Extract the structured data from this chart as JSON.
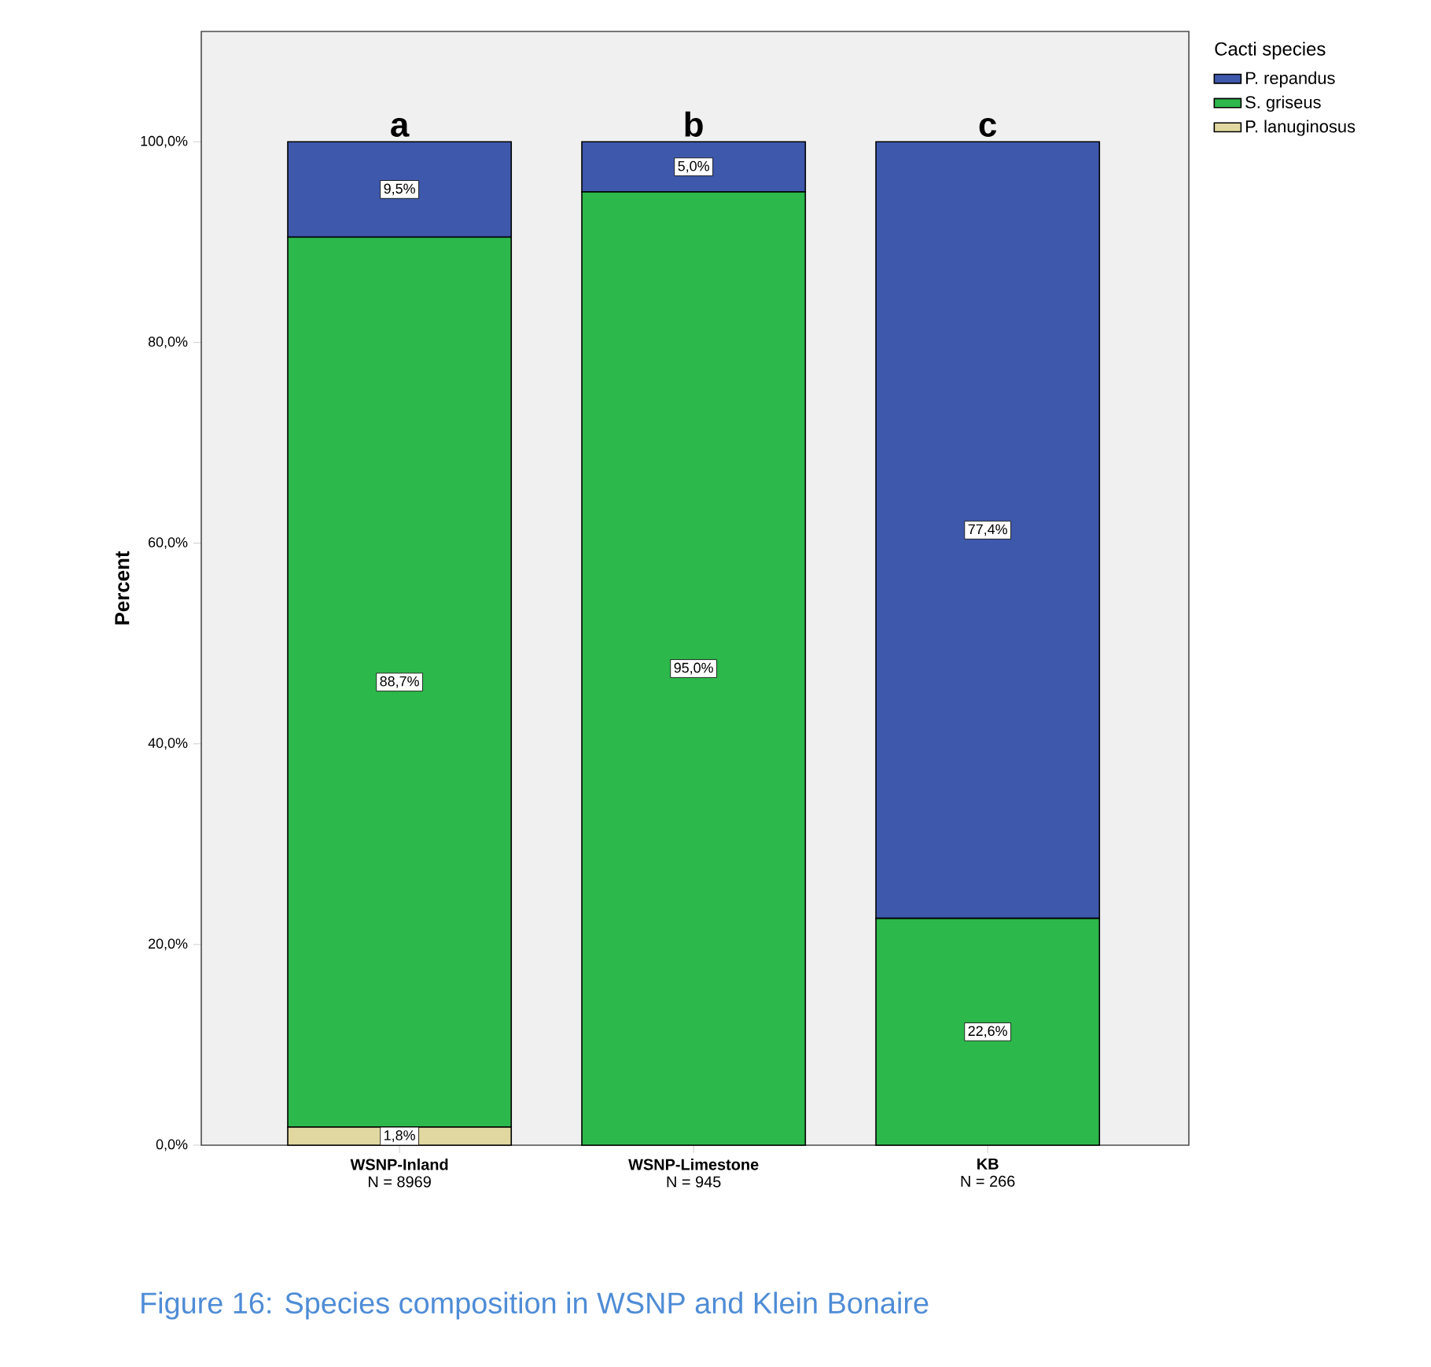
{
  "chart_data": {
    "type": "bar",
    "stacked": true,
    "ylabel": "Percent",
    "legend_title": "Cacti species",
    "legend": "top right",
    "categories": [
      "WSNP-Inland",
      "WSNP-Limestone",
      "KB"
    ],
    "series": [
      {
        "name": "P. lanuginosus",
        "color": "#e0d8a0",
        "values": [
          1.8,
          0,
          0
        ],
        "value_labels": [
          "1,8%",
          null,
          null
        ]
      },
      {
        "name": "S. griseus",
        "color": "#2db84b",
        "values": [
          88.7,
          95.0,
          22.6
        ],
        "value_labels": [
          "88,7%",
          "95,0%",
          "22,6%"
        ]
      },
      {
        "name": "P. repandus",
        "color": "#3e58ac",
        "values": [
          9.5,
          5.0,
          77.4
        ],
        "value_labels": [
          "9,5%",
          "5,0%",
          "77,4%"
        ]
      }
    ],
    "ylim": [
      0,
      111
    ],
    "yticks": [
      {
        "value": 0,
        "label": "0,0%"
      },
      {
        "value": 20,
        "label": "20,0%"
      },
      {
        "value": 40,
        "label": "40,0%"
      },
      {
        "value": 60,
        "label": "60,0%"
      },
      {
        "value": 80,
        "label": "80,0%"
      },
      {
        "value": 100,
        "label": "100,0%"
      }
    ],
    "annotations": [
      {
        "text": "a",
        "x": "WSNP-Inland",
        "y": 100
      },
      {
        "text": "b",
        "x": "WSNP-Limestone",
        "y": 100
      },
      {
        "text": "c",
        "x": "KB",
        "y": 100
      },
      "N = 8969",
      "N = 945",
      "N = 266",
      "Figure 16: Species composition in WSNP and Klein Bonaire"
    ]
  }
}
